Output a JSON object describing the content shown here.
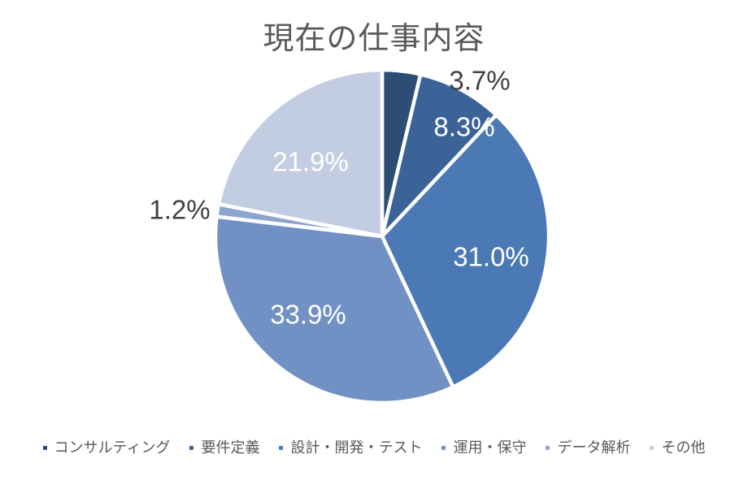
{
  "chart_data": {
    "type": "pie",
    "title": "現在の仕事内容",
    "categories": [
      "コンサルティング",
      "要件定義",
      "設計・開発・テスト",
      "運用・保守",
      "データ解析",
      "その他"
    ],
    "values": [
      3.7,
      8.3,
      31.0,
      33.9,
      1.2,
      21.9
    ],
    "colors": [
      "#2e4d74",
      "#3b6398",
      "#4a79b5",
      "#7191c4",
      "#8ca5cf",
      "#c3cde2"
    ],
    "label_suffix": "%",
    "label_positions": [
      "outside",
      "inside",
      "inside",
      "inside",
      "outside",
      "inside"
    ],
    "start_angle_deg": 0,
    "direction": "clockwise",
    "legend_position": "bottom",
    "title_color": "#595959",
    "legend_text_color": "#595959",
    "inside_label_color": "#ffffff",
    "outside_label_color": "#404040",
    "slice_border_color": "#ffffff",
    "background_color": "#ffffff"
  }
}
